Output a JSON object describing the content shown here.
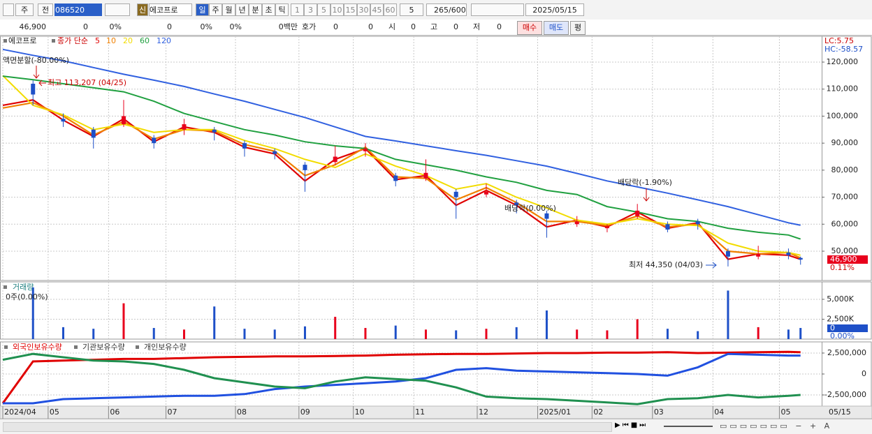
{
  "toolbar": {
    "market": "주",
    "scope": "전",
    "code": "086520",
    "name": "에코프로",
    "credit": "신",
    "periods": [
      "일",
      "주",
      "월",
      "년",
      "분",
      "초",
      "틱"
    ],
    "intervals": [
      "1",
      "3",
      "5",
      "10",
      "15",
      "30",
      "45",
      "60"
    ],
    "count_unit": "5",
    "count": "265",
    "max": "/600",
    "date": "2025/05/15"
  },
  "info": {
    "price": "46,900",
    "values": [
      "0",
      "0%",
      "0",
      "0%",
      "0%",
      "0백만"
    ],
    "quote": "호가",
    "q1": "0",
    "q2": "0",
    "open_label": "시",
    "open": "0",
    "high_label": "고",
    "high": "0",
    "low_label": "저",
    "low": "0",
    "buttons": [
      "매수",
      "매도",
      "평"
    ]
  },
  "chart_data": [
    {
      "type": "candlestick",
      "title": "에코프로",
      "legend_label": "종가 단순",
      "x": [
        0,
        10,
        20,
        30,
        40,
        50,
        60,
        70,
        80,
        90,
        100,
        110,
        120,
        130,
        140,
        150,
        160,
        170,
        180,
        190,
        200,
        210,
        220,
        230,
        240,
        250,
        260,
        264
      ],
      "open": [
        null,
        112000,
        99000,
        95000,
        97000,
        92000,
        95000,
        95000,
        90000,
        87000,
        82000,
        83000,
        87000,
        78000,
        77000,
        72000,
        71000,
        68000,
        64000,
        60000,
        58500,
        63000,
        60000,
        61000,
        50000,
        48000,
        49500,
        47500
      ],
      "high": [
        null,
        113207,
        101000,
        96000,
        106000,
        93000,
        99000,
        96000,
        91000,
        88000,
        83000,
        89000,
        90000,
        79000,
        84000,
        73000,
        75000,
        69000,
        65000,
        63000,
        60000,
        67500,
        61000,
        62000,
        51000,
        52000,
        51000,
        48000
      ],
      "low": [
        null,
        104000,
        96000,
        88000,
        96000,
        88000,
        93000,
        91000,
        85000,
        84000,
        72000,
        82000,
        85000,
        74000,
        76000,
        62000,
        70000,
        64000,
        55000,
        59000,
        57000,
        62000,
        57000,
        58000,
        44350,
        47000,
        47000,
        45000
      ],
      "close": [
        null,
        108000,
        98000,
        92000,
        100000,
        90000,
        97000,
        94000,
        88000,
        86000,
        80000,
        85000,
        88000,
        76000,
        79000,
        70000,
        72000,
        67000,
        62000,
        61000,
        59000,
        65000,
        58000,
        60000,
        48000,
        49000,
        48500,
        46900
      ],
      "up_color": "#e8001c",
      "down_color": "#1e50c8",
      "series": [
        {
          "name": "5",
          "color": "#e00000",
          "values": [
            104000,
            106000,
            98500,
            92500,
            99000,
            90500,
            96000,
            94000,
            88500,
            86000,
            76000,
            84000,
            88000,
            76500,
            78000,
            67000,
            72500,
            67000,
            59000,
            61500,
            59000,
            64500,
            58500,
            60500,
            47000,
            49000,
            48500,
            47000
          ]
        },
        {
          "name": "10",
          "color": "#f08000",
          "values": [
            103000,
            105000,
            100000,
            93000,
            98000,
            91500,
            95000,
            94500,
            89500,
            87000,
            78000,
            82000,
            88500,
            77500,
            77000,
            69000,
            73500,
            68000,
            61000,
            61000,
            59500,
            63000,
            59000,
            60000,
            50000,
            49000,
            49500,
            47500
          ]
        },
        {
          "name": "20",
          "color": "#f2dc00",
          "values": [
            115000,
            104000,
            100500,
            95000,
            97000,
            94000,
            95000,
            95000,
            91000,
            88000,
            84000,
            81000,
            86000,
            81500,
            78000,
            73000,
            75000,
            70000,
            66000,
            61500,
            60000,
            62000,
            60000,
            59500,
            53000,
            50000,
            49500,
            48500
          ]
        },
        {
          "name": "60",
          "color": "#20a040",
          "values": [
            114800,
            113500,
            112000,
            110500,
            109000,
            105500,
            101000,
            98000,
            95000,
            93000,
            90500,
            89000,
            88000,
            84000,
            82000,
            80000,
            77500,
            75500,
            72500,
            71000,
            66500,
            64500,
            62000,
            61000,
            58500,
            57000,
            56000,
            54500
          ]
        },
        {
          "name": "120",
          "color": "#3060e0",
          "values": [
            124700,
            122500,
            120500,
            118000,
            115500,
            113300,
            111000,
            108200,
            105500,
            102500,
            99500,
            96000,
            92500,
            90800,
            89000,
            87200,
            85500,
            83500,
            81500,
            78800,
            76000,
            73800,
            71500,
            69000,
            66500,
            63500,
            60500,
            59600
          ]
        }
      ],
      "xlim": [
        0,
        271
      ],
      "ylim": [
        39150,
        129560
      ],
      "yticks": [
        {
          "value": 50000,
          "label": "50,000"
        },
        {
          "value": 60000,
          "label": "60,000"
        },
        {
          "value": 70000,
          "label": "70,000"
        },
        {
          "value": 80000,
          "label": "80,000"
        },
        {
          "value": 90000,
          "label": "90,000"
        },
        {
          "value": 100000,
          "label": "100,000"
        },
        {
          "value": 110000,
          "label": "110,000"
        },
        {
          "value": 120000,
          "label": "120,000"
        }
      ],
      "grid": true,
      "annotations": [
        "액면분할(-80.00%)",
        "최고 113,207 (04/25)",
        "배당락(-1.90%)",
        "배당락(0.00%)",
        "최저 44,350 (04/03)"
      ],
      "right_labels": [
        "LC:5.75",
        "HC:-58.57"
      ],
      "last_price": {
        "value": 46900,
        "label": "46,900"
      },
      "last_change": "0.11%"
    },
    {
      "type": "bar",
      "title": "거래량",
      "subtitle": "0주(0.00%)",
      "x": [
        0,
        10,
        20,
        30,
        40,
        50,
        60,
        70,
        80,
        90,
        100,
        110,
        120,
        130,
        140,
        150,
        160,
        170,
        180,
        190,
        200,
        210,
        220,
        230,
        240,
        250,
        260,
        264
      ],
      "values": [
        null,
        6500,
        1500,
        1300,
        4500,
        1400,
        1200,
        4100,
        1300,
        1200,
        1600,
        2800,
        1400,
        1700,
        1200,
        1100,
        1300,
        1500,
        3600,
        1200,
        1100,
        2500,
        1300,
        1000,
        6100,
        1500,
        1200,
        1400
      ],
      "xlim": [
        0,
        271
      ],
      "ylim": [
        0,
        7190
      ],
      "yticks": [
        {
          "value": 2500,
          "label": "2,500K"
        },
        {
          "value": 5000,
          "label": "5,000K"
        }
      ],
      "grid": true,
      "current_label": "0",
      "current_pct": "0.00%"
    },
    {
      "type": "line",
      "x": [
        0,
        10,
        20,
        30,
        40,
        50,
        60,
        70,
        80,
        90,
        100,
        110,
        120,
        130,
        140,
        150,
        160,
        170,
        180,
        190,
        200,
        210,
        220,
        230,
        240,
        250,
        260,
        264
      ],
      "series": [
        {
          "name": "외국인보유수량",
          "color": "#e00000",
          "values": [
            -3500000,
            1500000,
            1600000,
            1700000,
            1800000,
            1800000,
            1900000,
            2000000,
            2050000,
            2100000,
            2100000,
            2150000,
            2200000,
            2300000,
            2350000,
            2400000,
            2400000,
            2450000,
            2500000,
            2500000,
            2550000,
            2550000,
            2600000,
            2500000,
            2550000,
            2600000,
            2650000,
            2600000
          ]
        },
        {
          "name": "기관보유수량",
          "color": "#2050e0",
          "values": [
            -3500000,
            -3500000,
            -3000000,
            -2900000,
            -2800000,
            -2700000,
            -2600000,
            -2600000,
            -2400000,
            -1800000,
            -1500000,
            -1300000,
            -1100000,
            -900000,
            -500000,
            500000,
            700000,
            400000,
            300000,
            200000,
            100000,
            0,
            -200000,
            800000,
            2400000,
            2300000,
            2200000,
            2200000
          ]
        },
        {
          "name": "개인보유수량",
          "color": "#209050",
          "values": [
            1700000,
            2400000,
            2000000,
            1600000,
            1500000,
            1200000,
            500000,
            -500000,
            -1000000,
            -1500000,
            -1700000,
            -900000,
            -400000,
            -600000,
            -800000,
            -1600000,
            -2700000,
            -2900000,
            -3000000,
            -3200000,
            -3400000,
            -3600000,
            -3000000,
            -2900000,
            -2500000,
            -2800000,
            -2600000,
            -2500000
          ]
        }
      ],
      "xlim": [
        0,
        271
      ],
      "ylim": [
        -3830000,
        3830000
      ],
      "yticks": [
        {
          "value": -2500000,
          "label": "-2,500,000"
        },
        0,
        {
          "value": 2500000,
          "label": "2,500,000"
        }
      ],
      "grid": true,
      "xticks": [
        {
          "value": 0,
          "label": "2024/04"
        },
        {
          "value": 15,
          "label": "05"
        },
        {
          "value": 35,
          "label": "06"
        },
        {
          "value": 54,
          "label": "07"
        },
        {
          "value": 77,
          "label": "08"
        },
        {
          "value": 98,
          "label": "09"
        },
        {
          "value": 116,
          "label": "10"
        },
        {
          "value": 136,
          "label": "11"
        },
        {
          "value": 157,
          "label": "12"
        },
        {
          "value": 177,
          "label": "2025/01"
        },
        {
          "value": 195,
          "label": "02"
        },
        {
          "value": 215,
          "label": "03"
        },
        {
          "value": 235,
          "label": "04"
        },
        {
          "value": 257,
          "label": "05"
        }
      ],
      "x_end_label": "05/15"
    }
  ]
}
